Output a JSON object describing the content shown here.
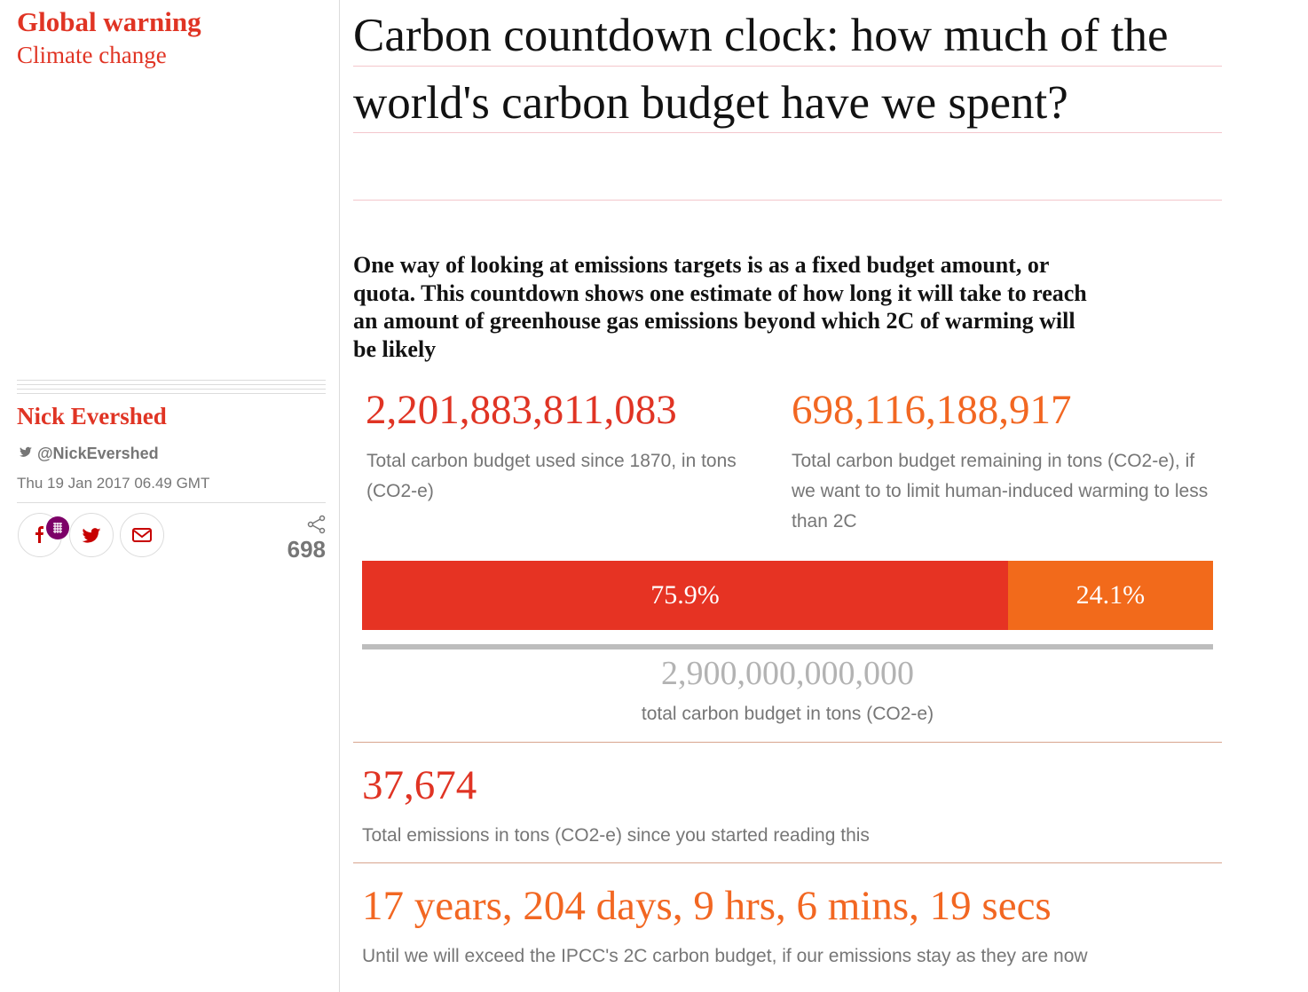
{
  "header": {
    "series": "Global warning",
    "section": "Climate change"
  },
  "byline": {
    "author": "Nick Evershed",
    "twitter": "@NickEvershed",
    "date": "Thu 19 Jan 2017 06.49 GMT"
  },
  "share_count": 698,
  "headline": "Carbon countdown clock: how much of the world's carbon budget have we spent?",
  "standfirst": "One way of looking at emissions targets is as a fixed budget amount, or quota. This countdown shows one estimate of how long it will take to reach an amount of greenhouse gas emissions beyond which 2C of warming will be likely",
  "budget_used": {
    "value": "2,201,883,811,083",
    "caption": "Total carbon budget used since 1870, in tons (CO2-e)"
  },
  "budget_remaining": {
    "value": "698,116,188,917",
    "caption": "Total carbon budget remaining in tons (CO2-e), if we want to to limit human-induced warming to less than 2C"
  },
  "bar": {
    "segments": [
      {
        "value": 75.9,
        "label": "75.9%",
        "color": "#e63323"
      },
      {
        "value": 24.1,
        "label": "24.1%",
        "color": "#f26a1b"
      }
    ]
  },
  "total_budget": {
    "value": "2,900,000,000,000",
    "caption": "total carbon budget in tons (CO2-e)"
  },
  "since_reading": {
    "value": "37,674",
    "caption": "Total emissions in tons (CO2-e) since you started reading this"
  },
  "countdown": {
    "value": "17 years, 204 days, 9 hrs, 6 mins, 19 secs",
    "caption": "Until we will exceed the IPCC's 2C carbon budget, if our emissions stay as they are now"
  }
}
